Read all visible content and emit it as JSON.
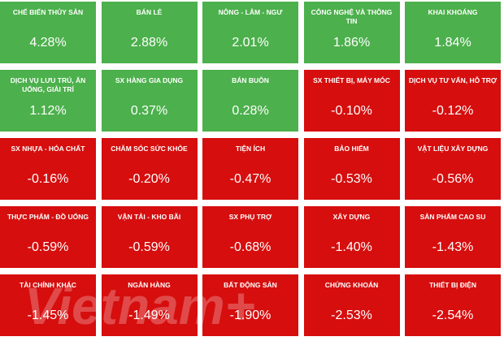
{
  "chart_data": {
    "type": "tiles",
    "categories": [
      "CHẾ BIẾN THỦY SẢN",
      "BÁN LẺ",
      "NÔNG - LÂM - NGƯ",
      "CÔNG NGHỆ VÀ THÔNG TIN",
      "KHAI KHOÁNG",
      "DỊCH VỤ LƯU TRÚ, ĂN UỐNG, GIẢI TRÍ",
      "SX HÀNG GIA DỤNG",
      "BÁN BUÔN",
      "SX THIẾT BỊ, MÁY MÓC",
      "DỊCH VỤ TƯ VẤN, HỖ TRỢ",
      "SX NHỰA - HÓA CHẤT",
      "CHĂM SÓC SỨC KHỎE",
      "TIỆN ÍCH",
      "BẢO HIỂM",
      "VẬT LIỆU XÂY DỰNG",
      "THỰC PHẨM - ĐỒ UỐNG",
      "VẬN TẢI - KHO BÃI",
      "SX PHỤ TRỢ",
      "XÂY DỰNG",
      "SẢN PHẨM CAO SU",
      "TÀI CHÍNH KHÁC",
      "NGÂN HÀNG",
      "BẤT ĐỘNG SẢN",
      "CHỨNG KHOÁN",
      "THIẾT BỊ ĐIỆN"
    ],
    "values": [
      4.28,
      2.88,
      2.01,
      1.86,
      1.84,
      1.12,
      0.37,
      0.28,
      -0.1,
      -0.12,
      -0.16,
      -0.2,
      -0.47,
      -0.53,
      -0.56,
      -0.59,
      -0.59,
      -0.68,
      -1.4,
      -1.43,
      -1.45,
      -1.49,
      -1.9,
      -2.53,
      -2.54
    ],
    "value_labels": [
      "4.28%",
      "2.88%",
      "2.01%",
      "1.86%",
      "1.84%",
      "1.12%",
      "0.37%",
      "0.28%",
      "-0.10%",
      "-0.12%",
      "-0.16%",
      "-0.20%",
      "-0.47%",
      "-0.53%",
      "-0.56%",
      "-0.59%",
      "-0.59%",
      "-0.68%",
      "-1.40%",
      "-1.43%",
      "-1.45%",
      "-1.49%",
      "-1.90%",
      "-2.53%",
      "-2.54%"
    ],
    "positive_color": "#4cb04c",
    "negative_color": "#d60e0e",
    "columns": 5,
    "watermark": "Vietnam+"
  }
}
